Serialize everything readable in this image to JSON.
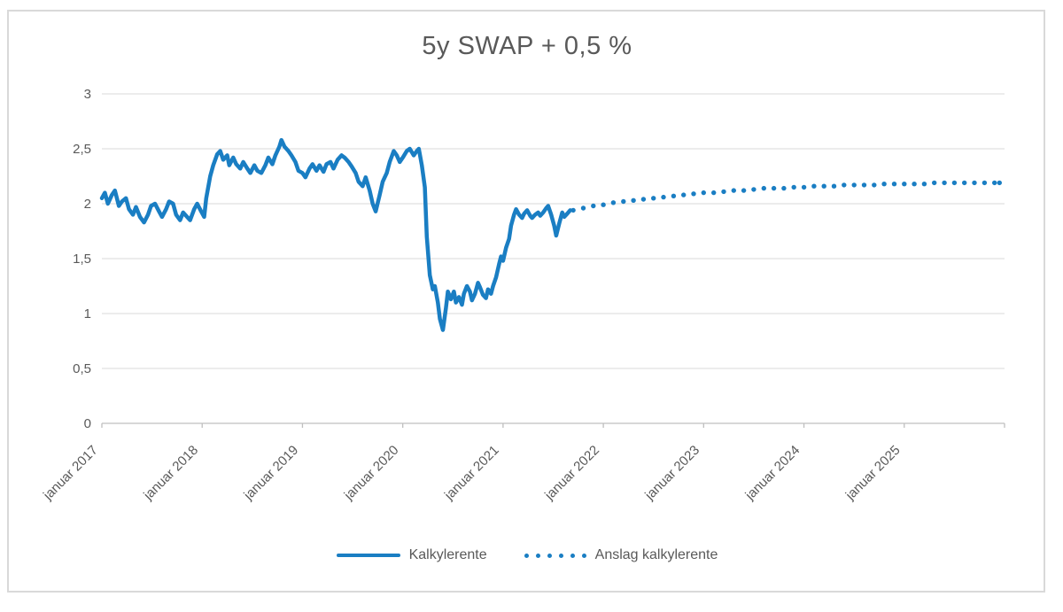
{
  "title": "5y SWAP + 0,5 %",
  "colors": {
    "line": "#1A7EC3",
    "grid": "#D9D9D9",
    "axis": "#BFBFBF",
    "text": "#595959",
    "border": "#D9D9D9",
    "background": "#FFFFFF"
  },
  "legend": {
    "series1_label": "Kalkylerente",
    "series2_label": "Anslag kalkylerente"
  },
  "chart_data": {
    "type": "line",
    "title": "5y SWAP + 0,5 %",
    "xlabel": "",
    "ylabel": "",
    "xlim": [
      0,
      9
    ],
    "ylim": [
      0,
      3
    ],
    "grid": "horizontal",
    "legend_position": "bottom",
    "x_unit": "years since januar 2017",
    "x_tick_labels": [
      "januar 2017",
      "januar 2018",
      "januar 2019",
      "januar 2020",
      "januar 2021",
      "januar 2022",
      "januar 2023",
      "januar 2024",
      "januar 2025"
    ],
    "y_tick_labels": [
      "0",
      "0,5",
      "1",
      "1,5",
      "2",
      "2,5",
      "3"
    ],
    "y_tick_values": [
      0,
      0.5,
      1,
      1.5,
      2,
      2.5,
      3
    ],
    "series": [
      {
        "name": "Kalkylerente",
        "style": "solid",
        "points": [
          [
            0,
            2.05
          ],
          [
            0.03,
            2.1
          ],
          [
            0.06,
            2.0
          ],
          [
            0.1,
            2.08
          ],
          [
            0.13,
            2.12
          ],
          [
            0.17,
            1.98
          ],
          [
            0.2,
            2.02
          ],
          [
            0.24,
            2.05
          ],
          [
            0.27,
            1.95
          ],
          [
            0.31,
            1.9
          ],
          [
            0.34,
            1.97
          ],
          [
            0.38,
            1.88
          ],
          [
            0.42,
            1.83
          ],
          [
            0.46,
            1.9
          ],
          [
            0.49,
            1.98
          ],
          [
            0.53,
            2.0
          ],
          [
            0.57,
            1.93
          ],
          [
            0.6,
            1.88
          ],
          [
            0.64,
            1.95
          ],
          [
            0.67,
            2.02
          ],
          [
            0.71,
            2.0
          ],
          [
            0.74,
            1.9
          ],
          [
            0.78,
            1.85
          ],
          [
            0.81,
            1.92
          ],
          [
            0.85,
            1.88
          ],
          [
            0.88,
            1.85
          ],
          [
            0.92,
            1.95
          ],
          [
            0.95,
            2.0
          ],
          [
            0.99,
            1.93
          ],
          [
            1.02,
            1.88
          ],
          [
            1.04,
            2.05
          ],
          [
            1.08,
            2.25
          ],
          [
            1.11,
            2.35
          ],
          [
            1.15,
            2.45
          ],
          [
            1.18,
            2.48
          ],
          [
            1.21,
            2.4
          ],
          [
            1.25,
            2.44
          ],
          [
            1.27,
            2.35
          ],
          [
            1.31,
            2.42
          ],
          [
            1.34,
            2.36
          ],
          [
            1.38,
            2.32
          ],
          [
            1.41,
            2.38
          ],
          [
            1.45,
            2.32
          ],
          [
            1.48,
            2.28
          ],
          [
            1.52,
            2.35
          ],
          [
            1.55,
            2.3
          ],
          [
            1.59,
            2.28
          ],
          [
            1.63,
            2.35
          ],
          [
            1.66,
            2.42
          ],
          [
            1.7,
            2.36
          ],
          [
            1.73,
            2.44
          ],
          [
            1.77,
            2.52
          ],
          [
            1.79,
            2.58
          ],
          [
            1.82,
            2.52
          ],
          [
            1.86,
            2.48
          ],
          [
            1.89,
            2.44
          ],
          [
            1.93,
            2.38
          ],
          [
            1.96,
            2.3
          ],
          [
            2.0,
            2.28
          ],
          [
            2.03,
            2.24
          ],
          [
            2.07,
            2.32
          ],
          [
            2.1,
            2.36
          ],
          [
            2.14,
            2.3
          ],
          [
            2.17,
            2.35
          ],
          [
            2.21,
            2.29
          ],
          [
            2.24,
            2.36
          ],
          [
            2.28,
            2.38
          ],
          [
            2.31,
            2.32
          ],
          [
            2.35,
            2.4
          ],
          [
            2.39,
            2.44
          ],
          [
            2.42,
            2.42
          ],
          [
            2.46,
            2.38
          ],
          [
            2.49,
            2.34
          ],
          [
            2.53,
            2.28
          ],
          [
            2.56,
            2.2
          ],
          [
            2.6,
            2.16
          ],
          [
            2.63,
            2.24
          ],
          [
            2.67,
            2.12
          ],
          [
            2.7,
            2.0
          ],
          [
            2.73,
            1.93
          ],
          [
            2.77,
            2.08
          ],
          [
            2.8,
            2.2
          ],
          [
            2.84,
            2.28
          ],
          [
            2.87,
            2.38
          ],
          [
            2.91,
            2.48
          ],
          [
            2.94,
            2.44
          ],
          [
            2.97,
            2.38
          ],
          [
            3.0,
            2.42
          ],
          [
            3.04,
            2.48
          ],
          [
            3.07,
            2.5
          ],
          [
            3.11,
            2.44
          ],
          [
            3.14,
            2.48
          ],
          [
            3.16,
            2.5
          ],
          [
            3.19,
            2.35
          ],
          [
            3.22,
            2.15
          ],
          [
            3.24,
            1.7
          ],
          [
            3.27,
            1.35
          ],
          [
            3.3,
            1.22
          ],
          [
            3.32,
            1.25
          ],
          [
            3.35,
            1.1
          ],
          [
            3.37,
            0.95
          ],
          [
            3.4,
            0.85
          ],
          [
            3.43,
            1.05
          ],
          [
            3.45,
            1.2
          ],
          [
            3.48,
            1.13
          ],
          [
            3.51,
            1.2
          ],
          [
            3.53,
            1.1
          ],
          [
            3.56,
            1.15
          ],
          [
            3.59,
            1.08
          ],
          [
            3.61,
            1.18
          ],
          [
            3.64,
            1.25
          ],
          [
            3.67,
            1.2
          ],
          [
            3.69,
            1.12
          ],
          [
            3.72,
            1.18
          ],
          [
            3.75,
            1.28
          ],
          [
            3.77,
            1.24
          ],
          [
            3.8,
            1.17
          ],
          [
            3.83,
            1.14
          ],
          [
            3.85,
            1.22
          ],
          [
            3.88,
            1.18
          ],
          [
            3.9,
            1.25
          ],
          [
            3.93,
            1.33
          ],
          [
            3.96,
            1.45
          ],
          [
            3.98,
            1.52
          ],
          [
            4.0,
            1.48
          ],
          [
            4.03,
            1.6
          ],
          [
            4.06,
            1.68
          ],
          [
            4.08,
            1.8
          ],
          [
            4.11,
            1.9
          ],
          [
            4.13,
            1.95
          ],
          [
            4.16,
            1.9
          ],
          [
            4.19,
            1.87
          ],
          [
            4.21,
            1.91
          ],
          [
            4.24,
            1.94
          ],
          [
            4.27,
            1.89
          ],
          [
            4.29,
            1.87
          ],
          [
            4.32,
            1.9
          ],
          [
            4.35,
            1.92
          ],
          [
            4.37,
            1.89
          ],
          [
            4.4,
            1.92
          ],
          [
            4.43,
            1.96
          ],
          [
            4.45,
            1.98
          ],
          [
            4.48,
            1.9
          ],
          [
            4.51,
            1.8
          ],
          [
            4.53,
            1.71
          ],
          [
            4.56,
            1.82
          ],
          [
            4.59,
            1.92
          ],
          [
            4.61,
            1.88
          ],
          [
            4.64,
            1.91
          ],
          [
            4.67,
            1.94
          ]
        ]
      },
      {
        "name": "Anslag kalkylerente",
        "style": "dotted",
        "points": [
          [
            4.7,
            1.94
          ],
          [
            4.8,
            1.96
          ],
          [
            4.9,
            1.98
          ],
          [
            5.0,
            1.99
          ],
          [
            5.1,
            2.01
          ],
          [
            5.2,
            2.02
          ],
          [
            5.3,
            2.03
          ],
          [
            5.4,
            2.04
          ],
          [
            5.5,
            2.05
          ],
          [
            5.6,
            2.06
          ],
          [
            5.7,
            2.07
          ],
          [
            5.8,
            2.08
          ],
          [
            5.9,
            2.09
          ],
          [
            6.0,
            2.1
          ],
          [
            6.1,
            2.1
          ],
          [
            6.2,
            2.11
          ],
          [
            6.3,
            2.12
          ],
          [
            6.4,
            2.12
          ],
          [
            6.5,
            2.13
          ],
          [
            6.6,
            2.14
          ],
          [
            6.7,
            2.14
          ],
          [
            6.8,
            2.14
          ],
          [
            6.9,
            2.15
          ],
          [
            7.0,
            2.15
          ],
          [
            7.1,
            2.16
          ],
          [
            7.2,
            2.16
          ],
          [
            7.3,
            2.16
          ],
          [
            7.4,
            2.17
          ],
          [
            7.5,
            2.17
          ],
          [
            7.6,
            2.17
          ],
          [
            7.7,
            2.17
          ],
          [
            7.8,
            2.18
          ],
          [
            7.9,
            2.18
          ],
          [
            8.0,
            2.18
          ],
          [
            8.1,
            2.18
          ],
          [
            8.2,
            2.18
          ],
          [
            8.3,
            2.19
          ],
          [
            8.4,
            2.19
          ],
          [
            8.5,
            2.19
          ],
          [
            8.6,
            2.19
          ],
          [
            8.7,
            2.19
          ],
          [
            8.8,
            2.19
          ],
          [
            8.9,
            2.19
          ],
          [
            8.95,
            2.19
          ]
        ]
      }
    ]
  }
}
